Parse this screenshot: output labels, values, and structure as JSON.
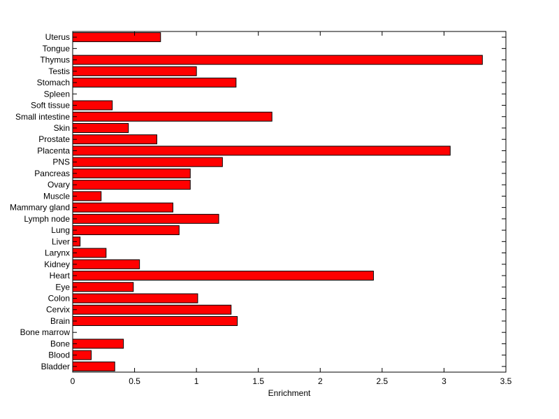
{
  "chart_data": {
    "type": "bar",
    "orientation": "horizontal",
    "title": "",
    "xlabel": "Enrichment",
    "ylabel": "",
    "xlim": [
      0,
      3.5
    ],
    "xticks": [
      0,
      0.5,
      1,
      1.5,
      2,
      2.5,
      3,
      3.5
    ],
    "xtick_labels": [
      "0",
      "0.5",
      "1",
      "1.5",
      "2",
      "2.5",
      "3",
      "3.5"
    ],
    "grid": false,
    "bar_color": "#ff0000",
    "bar_edge_color": "#000000",
    "categories": [
      "Bladder",
      "Blood",
      "Bone",
      "Bone marrow",
      "Brain",
      "Cervix",
      "Colon",
      "Eye",
      "Heart",
      "Kidney",
      "Larynx",
      "Liver",
      "Lung",
      "Lymph node",
      "Mammary gland",
      "Muscle",
      "Ovary",
      "Pancreas",
      "PNS",
      "Placenta",
      "Prostate",
      "Skin",
      "Small intestine",
      "Soft tissue",
      "Spleen",
      "Stomach",
      "Testis",
      "Thymus",
      "Tongue",
      "Uterus"
    ],
    "values": [
      0.34,
      0.15,
      0.41,
      0,
      1.33,
      1.28,
      1.01,
      0.49,
      2.43,
      0.54,
      0.27,
      0.06,
      0.86,
      1.18,
      0.81,
      0.23,
      0.95,
      0.95,
      1.21,
      3.05,
      0.68,
      0.45,
      1.61,
      0.32,
      0,
      1.32,
      1.0,
      3.31,
      0,
      0.71
    ]
  }
}
